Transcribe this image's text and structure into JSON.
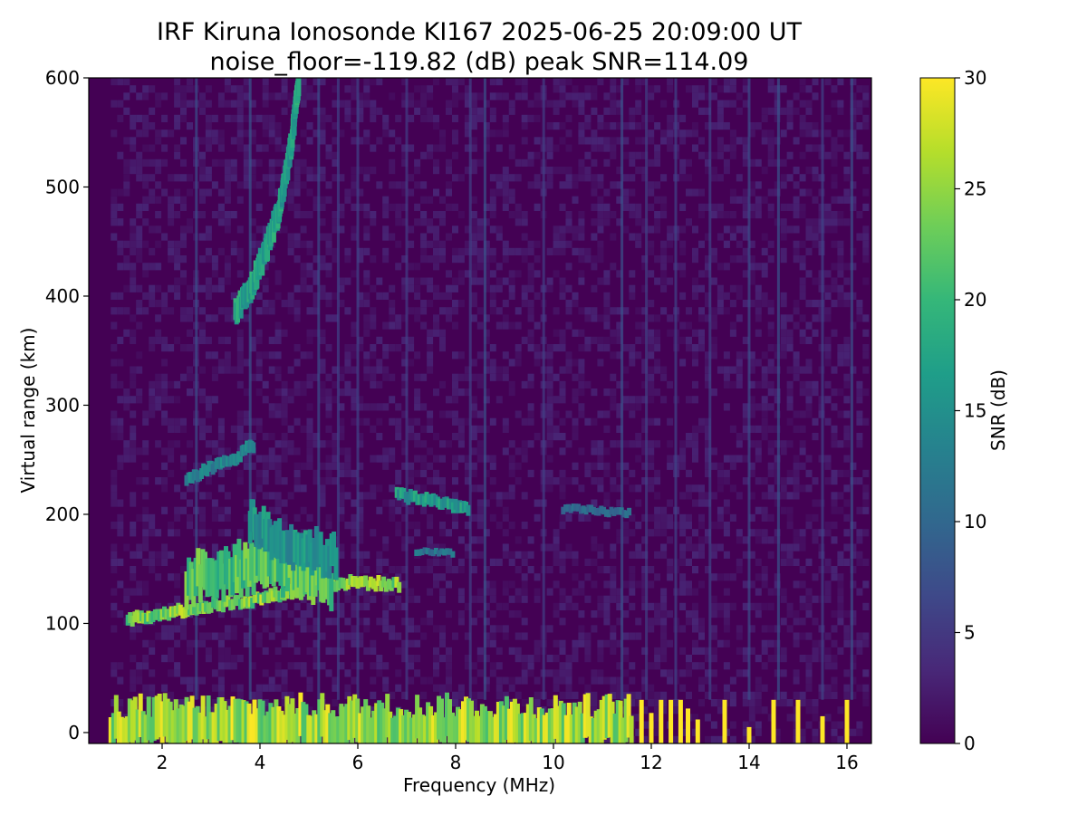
{
  "chart_data": {
    "type": "heatmap",
    "title": "IRF Kiruna Ionosonde KI167 2025-06-25 20:09:00  UT",
    "subtitle": "noise_floor=-119.82 (dB) peak SNR=114.09",
    "xlabel": "Frequency (MHz)",
    "ylabel": "Virtual range (km)",
    "xlim": [
      0.5,
      16.5
    ],
    "ylim": [
      -10,
      600
    ],
    "x_ticks": [
      2,
      4,
      6,
      8,
      10,
      12,
      14,
      16
    ],
    "y_ticks": [
      0,
      100,
      200,
      300,
      400,
      500,
      600
    ],
    "colorbar": {
      "label": "SNR (dB)",
      "range": [
        0,
        30
      ],
      "ticks": [
        0,
        5,
        10,
        15,
        20,
        25,
        30
      ],
      "colormap": "viridis",
      "colors": [
        "#440154",
        "#482878",
        "#3e4989",
        "#31688e",
        "#26828e",
        "#1f9e89",
        "#35b779",
        "#6ece58",
        "#b5de2b",
        "#fde725"
      ]
    },
    "data_freq_range_mhz": [
      0.95,
      16.45
    ],
    "traces": [
      {
        "points": [
          [
            0.95,
            5
          ],
          [
            11.65,
            5
          ]
        ],
        "thickness_km": 40,
        "snr": 30
      },
      {
        "points": [
          [
            1.3,
            103
          ],
          [
            2.0,
            109
          ],
          [
            2.8,
            115
          ],
          [
            3.8,
            121
          ],
          [
            4.5,
            128
          ],
          [
            5.2,
            135
          ],
          [
            6.0,
            138
          ],
          [
            6.9,
            135
          ]
        ],
        "thickness_km": 10,
        "snr": 28
      },
      {
        "points": [
          [
            2.5,
            140
          ],
          [
            3.4,
            148
          ],
          [
            4.0,
            155
          ],
          [
            4.8,
            148
          ],
          [
            5.5,
            138
          ]
        ],
        "thickness_km": 35,
        "snr": 25
      },
      {
        "points": [
          [
            3.8,
            195
          ],
          [
            4.2,
            180
          ],
          [
            4.8,
            170
          ],
          [
            5.6,
            160
          ]
        ],
        "thickness_km": 30,
        "snr": 18
      },
      {
        "points": [
          [
            2.5,
            233
          ],
          [
            3.0,
            242
          ],
          [
            3.5,
            252
          ],
          [
            3.9,
            265
          ]
        ],
        "thickness_km": 10,
        "snr": 16
      },
      {
        "points": [
          [
            3.5,
            385
          ],
          [
            3.8,
            405
          ],
          [
            4.1,
            440
          ],
          [
            4.4,
            480
          ],
          [
            4.65,
            540
          ],
          [
            4.8,
            600
          ]
        ],
        "thickness_km": 20,
        "snr": 20
      },
      {
        "points": [
          [
            6.8,
            218
          ],
          [
            7.5,
            213
          ],
          [
            8.0,
            208
          ],
          [
            8.3,
            204
          ]
        ],
        "thickness_km": 10,
        "snr": 19
      },
      {
        "points": [
          [
            7.2,
            165
          ],
          [
            8.0,
            165
          ]
        ],
        "thickness_km": 6,
        "snr": 14
      },
      {
        "points": [
          [
            10.2,
            205
          ],
          [
            11.6,
            201
          ]
        ],
        "thickness_km": 7,
        "snr": 12
      }
    ],
    "vertical_lines_mhz": [
      2.7,
      3.8,
      5.2,
      5.6,
      6.0,
      7.0,
      8.3,
      8.6,
      9.8,
      11.4,
      11.9,
      12.5,
      13.2,
      14.0,
      14.6,
      15.5,
      16.1
    ],
    "high_band_spikes": [
      {
        "freq": 11.8,
        "top_km": 30
      },
      {
        "freq": 12.0,
        "top_km": 18
      },
      {
        "freq": 12.2,
        "top_km": 30
      },
      {
        "freq": 12.4,
        "top_km": 30
      },
      {
        "freq": 12.6,
        "top_km": 30
      },
      {
        "freq": 12.75,
        "top_km": 22
      },
      {
        "freq": 12.95,
        "top_km": 12
      },
      {
        "freq": 13.5,
        "top_km": 30
      },
      {
        "freq": 14.0,
        "top_km": 5
      },
      {
        "freq": 14.5,
        "top_km": 30
      },
      {
        "freq": 15.0,
        "top_km": 30
      },
      {
        "freq": 15.5,
        "top_km": 15
      },
      {
        "freq": 16.0,
        "top_km": 30
      }
    ]
  }
}
